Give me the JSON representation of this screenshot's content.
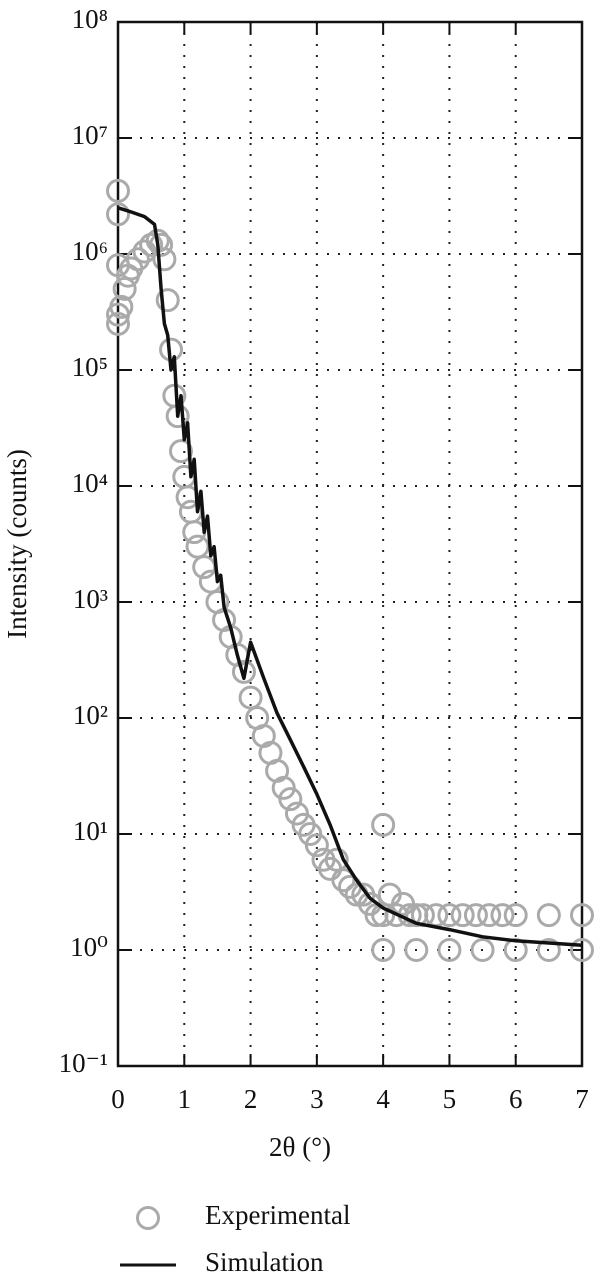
{
  "chart_data": {
    "type": "scatter",
    "xlabel": "2θ (°)",
    "ylabel": "Intensity (counts)",
    "xlim": [
      0,
      7
    ],
    "ylim": [
      0.1,
      100000000
    ],
    "ylog": true,
    "grid": true,
    "legend": "bottom",
    "xticks": [
      0,
      1,
      2,
      3,
      4,
      5,
      6,
      7
    ],
    "yticks": [
      {
        "value": 0.1,
        "label": "10⁻¹"
      },
      {
        "value": 1,
        "label": "10⁰"
      },
      {
        "value": 10,
        "label": "10¹"
      },
      {
        "value": 100,
        "label": "10²"
      },
      {
        "value": 1000,
        "label": "10³"
      },
      {
        "value": 10000,
        "label": "10⁴"
      },
      {
        "value": 100000,
        "label": "10⁵"
      },
      {
        "value": 1000000,
        "label": "10⁶"
      },
      {
        "value": 10000000,
        "label": "10⁷"
      },
      {
        "value": 100000000,
        "label": "10⁸"
      }
    ],
    "series": [
      {
        "name": "Experimental",
        "type": "scatter",
        "color": "#aaaaaa",
        "x": [
          0,
          0,
          0,
          0,
          0,
          0.05,
          0.1,
          0.15,
          0.2,
          0.3,
          0.4,
          0.5,
          0.6,
          0.65,
          0.7,
          0.75,
          0.8,
          0.85,
          0.9,
          0.95,
          1.0,
          1.05,
          1.1,
          1.15,
          1.2,
          1.3,
          1.4,
          1.5,
          1.6,
          1.7,
          1.8,
          1.9,
          2.0,
          2.1,
          2.2,
          2.3,
          2.4,
          2.5,
          2.6,
          2.7,
          2.8,
          2.9,
          3.0,
          3.1,
          3.2,
          3.3,
          3.4,
          3.5,
          3.6,
          3.7,
          3.8,
          3.9,
          4.0,
          4.0,
          4.1,
          4.2,
          4.3,
          4.4,
          4.5,
          4.6,
          4.8,
          5.0,
          5.2,
          5.4,
          5.6,
          5.8,
          6.0,
          6.5,
          7.0,
          4.0,
          4.5,
          5.0,
          5.5,
          6.0,
          6.5,
          7.0
        ],
        "values": [
          3500000,
          2200000,
          800000,
          300000,
          250000,
          350000,
          500000,
          650000,
          750000,
          900000,
          1050000,
          1200000,
          1300000,
          1200000,
          900000,
          400000,
          150000,
          60000,
          40000,
          20000,
          12000,
          8000,
          6000,
          4000,
          3000,
          2000,
          1500,
          1000,
          700,
          500,
          350,
          250,
          150,
          100,
          70,
          50,
          35,
          25,
          20,
          15,
          12,
          10,
          8,
          6,
          5,
          6,
          4,
          3.5,
          3,
          3,
          2.5,
          2,
          2,
          12,
          3,
          2,
          2.5,
          2,
          2,
          2,
          2,
          2,
          2,
          2,
          2,
          2,
          2,
          2,
          2,
          1,
          1,
          1,
          1,
          1,
          1,
          1
        ]
      },
      {
        "name": "Simulation",
        "type": "line",
        "color": "#111111",
        "x": [
          0,
          0.2,
          0.4,
          0.55,
          0.6,
          0.65,
          0.7,
          0.75,
          0.8,
          0.85,
          0.9,
          0.95,
          1.0,
          1.05,
          1.1,
          1.15,
          1.2,
          1.25,
          1.3,
          1.35,
          1.4,
          1.45,
          1.5,
          1.55,
          1.6,
          1.7,
          1.8,
          1.9,
          2.0,
          2.2,
          2.4,
          2.6,
          2.8,
          3.0,
          3.2,
          3.4,
          3.6,
          3.8,
          4.0,
          4.5,
          5.0,
          5.5,
          6.0,
          6.5,
          7.0
        ],
        "values": [
          2500000,
          2300000,
          2100000,
          1800000,
          1200000,
          500000,
          250000,
          200000,
          100000,
          130000,
          40000,
          60000,
          25000,
          35000,
          12000,
          17000,
          6000,
          9000,
          4000,
          5500,
          2500,
          3000,
          1500,
          1700,
          900,
          600,
          350,
          220,
          450,
          220,
          110,
          65,
          38,
          22,
          12,
          6,
          4,
          2.8,
          2.3,
          1.7,
          1.5,
          1.3,
          1.2,
          1.15,
          1.1
        ]
      }
    ]
  }
}
